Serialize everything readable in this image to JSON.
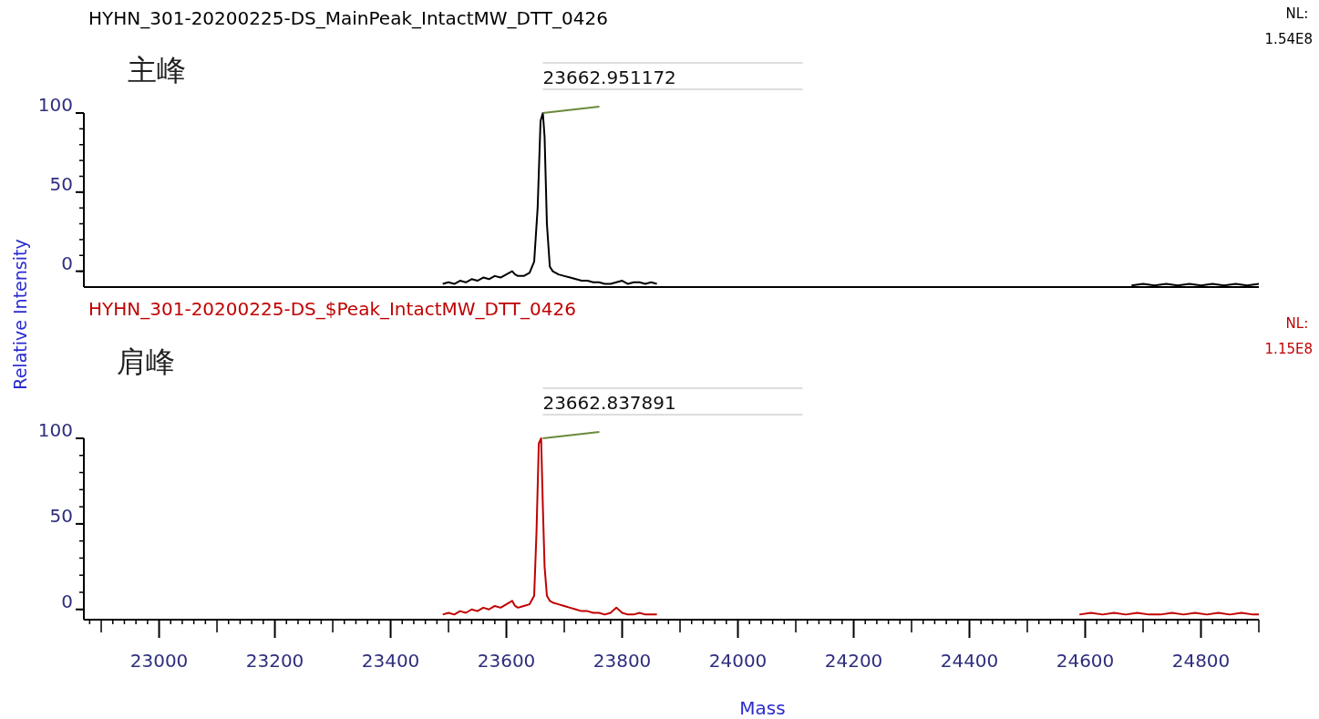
{
  "chart_data": [
    {
      "type": "line",
      "title": "HYHN_301-20200225-DS_MainPeak_IntactMW_DTT_0426",
      "ylabel": "Relative Intensity",
      "tick_labels": "y",
      "annotations": [
        "主峰",
        "NL: 1.54E8",
        {
          "text": "23662.951172",
          "x": 23662.951172,
          "y": 100
        }
      ],
      "xlim": [
        22870,
        24900
      ],
      "ylim": [
        -10,
        100
      ],
      "yticks": [
        0,
        50,
        100
      ],
      "series": [
        {
          "color": "#000000",
          "x": [
            23490,
            23500,
            23510,
            23520,
            23530,
            23540,
            23550,
            23560,
            23570,
            23580,
            23590,
            23600,
            23610,
            23615,
            23620,
            23630,
            23640,
            23648,
            23654,
            23659,
            23663,
            23666,
            23670,
            23675,
            23680,
            23690,
            23700,
            23710,
            23720,
            23730,
            23740,
            23750,
            23760,
            23770,
            23780,
            23790,
            23800,
            23810,
            23820,
            23830,
            23840,
            23850,
            23860
          ],
          "values": [
            -8,
            -7,
            -8,
            -6,
            -7,
            -5,
            -6,
            -4,
            -5,
            -3,
            -4,
            -2,
            0,
            -2,
            -3,
            -3,
            -1,
            6,
            40,
            95,
            100,
            85,
            30,
            3,
            0,
            -2,
            -3,
            -4,
            -5,
            -6,
            -6,
            -7,
            -7,
            -8,
            -8,
            -7,
            -6,
            -8,
            -7,
            -7,
            -8,
            -7,
            -8
          ]
        },
        {
          "color": "#000000",
          "x": [
            24680,
            24700,
            24720,
            24740,
            24760,
            24780,
            24800,
            24820,
            24840,
            24860,
            24880,
            24900
          ],
          "values": [
            -9,
            -8,
            -9,
            -8,
            -9,
            -8,
            -9,
            -8,
            -9,
            -8,
            -9,
            -8
          ]
        }
      ]
    },
    {
      "type": "line",
      "title": "HYHN_301-20200225-DS_$Peak_IntactMW_DTT_0426",
      "xlabel": "Mass",
      "annotations": [
        "肩峰",
        "NL: 1.15E8",
        {
          "text": "23662.837891",
          "x": 23662.837891,
          "y": 100
        }
      ],
      "xlim": [
        22870,
        24900
      ],
      "ylim": [
        -6,
        100
      ],
      "xticks": [
        23000,
        23200,
        23400,
        23600,
        23800,
        24000,
        24200,
        24400,
        24600,
        24800
      ],
      "yticks": [
        0,
        50,
        100
      ],
      "series": [
        {
          "color": "#c00000",
          "x": [
            23490,
            23500,
            23510,
            23520,
            23530,
            23540,
            23550,
            23560,
            23570,
            23580,
            23590,
            23600,
            23610,
            23615,
            23620,
            23630,
            23640,
            23648,
            23652,
            23656,
            23660,
            23663,
            23666,
            23670,
            23675,
            23680,
            23690,
            23700,
            23710,
            23720,
            23730,
            23740,
            23750,
            23760,
            23770,
            23780,
            23790,
            23800,
            23810,
            23820,
            23830,
            23840,
            23850,
            23860
          ],
          "values": [
            -3,
            -2,
            -3,
            -1,
            -2,
            0,
            -1,
            1,
            0,
            2,
            1,
            3,
            5,
            2,
            1,
            2,
            3,
            8,
            45,
            97,
            100,
            60,
            25,
            8,
            5,
            4,
            3,
            2,
            1,
            0,
            -1,
            -1,
            -2,
            -2,
            -3,
            -2,
            1,
            -2,
            -3,
            -3,
            -2,
            -3,
            -3,
            -3
          ]
        },
        {
          "color": "#c00000",
          "x": [
            24590,
            24610,
            24630,
            24650,
            24670,
            24690,
            24710,
            24730,
            24750,
            24770,
            24790,
            24810,
            24830,
            24850,
            24870,
            24890,
            24900
          ],
          "values": [
            -3,
            -2,
            -3,
            -2,
            -3,
            -2,
            -3,
            -3,
            -2,
            -3,
            -2,
            -3,
            -2,
            -3,
            -2,
            -3,
            -3
          ]
        }
      ]
    }
  ]
}
